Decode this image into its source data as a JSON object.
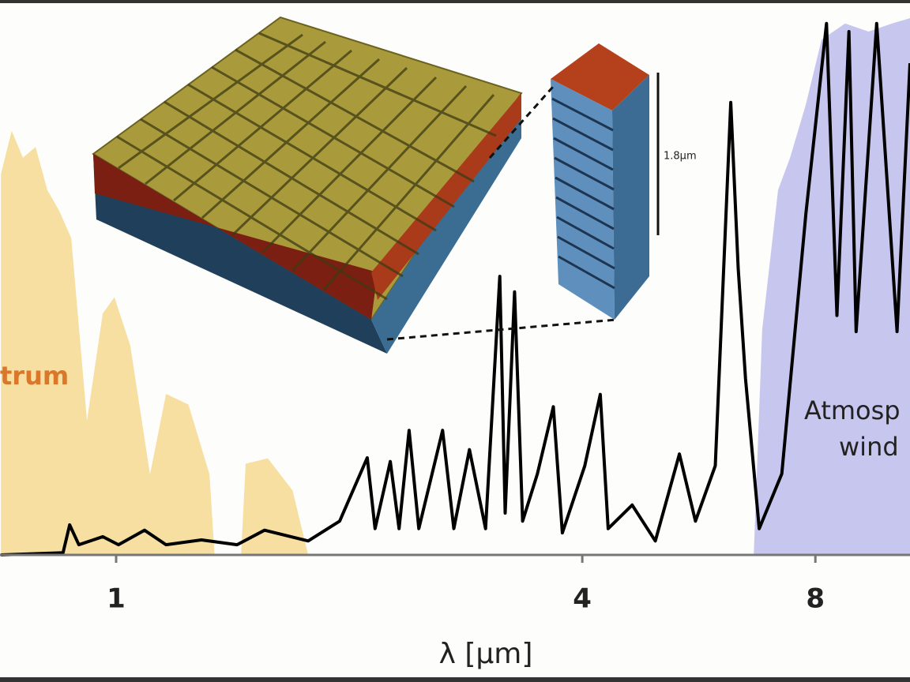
{
  "chart_data": {
    "type": "line",
    "xlabel": "λ [μm]",
    "xlim": [
      0.708,
      10.6
    ],
    "xticks": [
      1,
      4,
      8
    ],
    "log_x": true,
    "ylim": [
      0,
      1
    ],
    "annotations": [
      "trum",
      "Atmosp",
      "wind",
      "1.8μm"
    ],
    "series": [
      {
        "style": "area",
        "color": "#f6dfa0",
        "x": [
          0.71,
          0.733,
          0.758,
          0.787,
          0.815,
          0.845,
          0.875,
          0.917,
          0.961,
          0.995,
          1.043,
          1.106,
          1.16,
          1.24,
          1.32,
          1.34,
          null,
          1.45,
          1.47,
          1.57,
          1.69,
          1.77
        ],
        "values": [
          0.71,
          0.79,
          0.74,
          0.76,
          0.68,
          0.64,
          0.59,
          0.25,
          0.45,
          0.48,
          0.39,
          0.15,
          0.3,
          0.28,
          0.15,
          0,
          null,
          0,
          0.17,
          0.18,
          0.12,
          0
        ]
      },
      {
        "style": "area",
        "color": "#c7c6ef",
        "x": [
          6.66,
          6.83,
          7.16,
          7.42,
          7.78,
          8.15,
          8.74,
          9.37,
          10.05,
          10.6
        ],
        "values": [
          0,
          0.42,
          0.68,
          0.74,
          0.84,
          0.96,
          0.99,
          0.975,
          0.99,
          1.0
        ]
      },
      {
        "style": "line",
        "color": "#000000",
        "x": [
          0.71,
          0.854,
          0.871,
          0.895,
          0.961,
          1.007,
          1.088,
          1.16,
          1.289,
          1.433,
          1.555,
          1.77,
          1.944,
          2.11,
          2.16,
          2.26,
          2.32,
          2.39,
          2.46,
          2.64,
          2.73,
          2.86,
          3.0,
          3.13,
          3.18,
          3.27,
          3.35,
          3.5,
          3.67,
          3.77,
          4.03,
          4.22,
          4.32,
          4.64,
          4.97,
          5.34,
          5.6,
          5.94,
          6.22,
          6.36,
          6.5,
          6.77,
          7.24,
          7.78,
          8.27,
          8.53,
          8.84,
          9.03,
          9.6,
          10.2,
          10.6
        ],
        "values": [
          0,
          0.004,
          0.056,
          0.019,
          0.034,
          0.019,
          0.046,
          0.019,
          0.028,
          0.019,
          0.046,
          0.026,
          0.063,
          0.181,
          0.049,
          0.174,
          0.049,
          0.232,
          0.049,
          0.232,
          0.049,
          0.196,
          0.049,
          0.519,
          0.078,
          0.49,
          0.063,
          0.151,
          0.276,
          0.041,
          0.166,
          0.299,
          0.049,
          0.093,
          0.026,
          0.188,
          0.063,
          0.166,
          0.843,
          0.534,
          0.328,
          0.049,
          0.151,
          0.637,
          0.99,
          0.446,
          0.975,
          0.416,
          0.99,
          0.416,
          0.916
        ]
      }
    ]
  }
}
